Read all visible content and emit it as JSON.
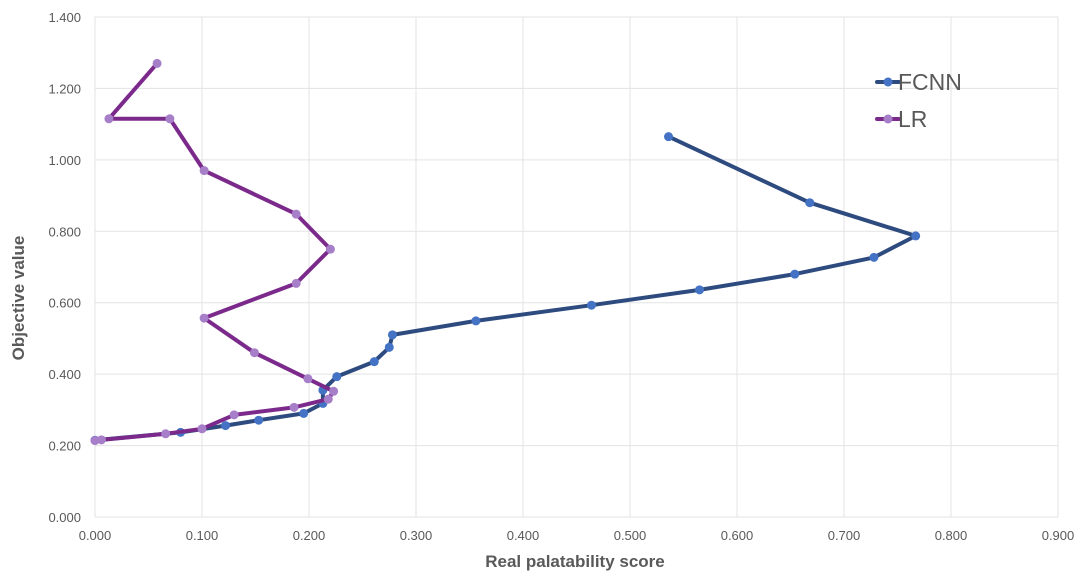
{
  "chart_data": {
    "type": "scatter",
    "xlabel": "Real palatability score",
    "ylabel": "Objective value",
    "xlim": [
      0,
      0.9
    ],
    "ylim": [
      0,
      1.4
    ],
    "xticks": [
      "0.000",
      "0.100",
      "0.200",
      "0.300",
      "0.400",
      "0.500",
      "0.600",
      "0.700",
      "0.800",
      "0.900"
    ],
    "yticks": [
      "0.000",
      "0.200",
      "0.400",
      "0.600",
      "0.800",
      "1.000",
      "1.200",
      "1.400"
    ],
    "grid": true,
    "legend_position": "top-right",
    "series": [
      {
        "name": "FCNN",
        "color": "#2e4b7f",
        "marker_color": "#4472c4",
        "points": [
          [
            0.536,
            1.065
          ],
          [
            0.668,
            0.88
          ],
          [
            0.767,
            0.787
          ],
          [
            0.728,
            0.727
          ],
          [
            0.654,
            0.68
          ],
          [
            0.565,
            0.636
          ],
          [
            0.464,
            0.593
          ],
          [
            0.356,
            0.549
          ],
          [
            0.278,
            0.51
          ],
          [
            0.275,
            0.475
          ],
          [
            0.261,
            0.435
          ],
          [
            0.226,
            0.393
          ],
          [
            0.213,
            0.355
          ],
          [
            0.213,
            0.318
          ],
          [
            0.195,
            0.29
          ],
          [
            0.153,
            0.271
          ],
          [
            0.122,
            0.256
          ],
          [
            0.08,
            0.237
          ],
          [
            0.0,
            0.215
          ]
        ]
      },
      {
        "name": "LR",
        "color": "#7b2a8c",
        "marker_color": "#a77fc9",
        "points": [
          [
            0.058,
            1.27
          ],
          [
            0.013,
            1.115
          ],
          [
            0.07,
            1.115
          ],
          [
            0.102,
            0.97
          ],
          [
            0.188,
            0.848
          ],
          [
            0.22,
            0.75
          ],
          [
            0.188,
            0.654
          ],
          [
            0.102,
            0.557
          ],
          [
            0.149,
            0.46
          ],
          [
            0.199,
            0.387
          ],
          [
            0.223,
            0.352
          ],
          [
            0.218,
            0.33
          ],
          [
            0.186,
            0.307
          ],
          [
            0.13,
            0.286
          ],
          [
            0.1,
            0.247
          ],
          [
            0.066,
            0.233
          ],
          [
            0.006,
            0.216
          ],
          [
            0.0,
            0.214
          ]
        ]
      }
    ]
  }
}
